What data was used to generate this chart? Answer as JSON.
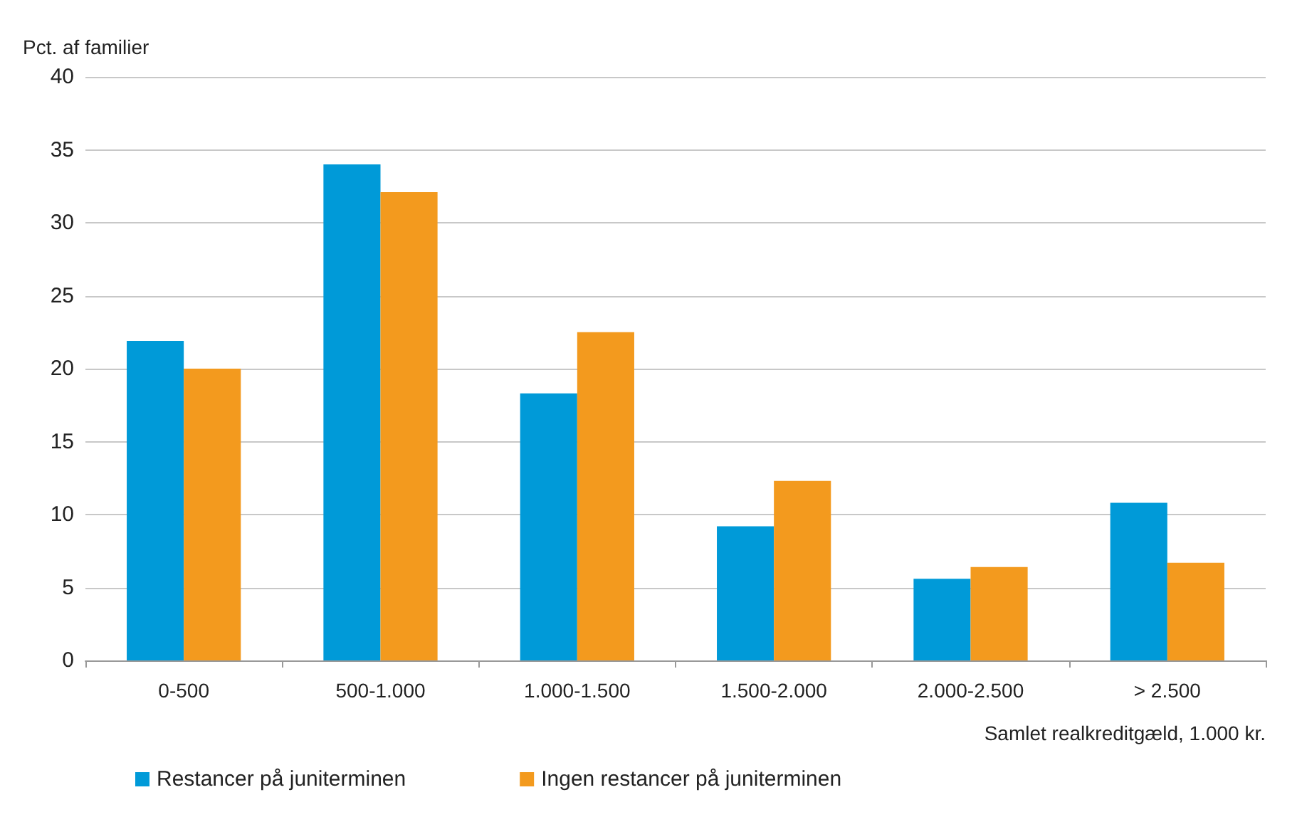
{
  "chart_data": {
    "type": "bar",
    "ylabel": "Pct. af familier",
    "xlabel": "Samlet realkreditgæld, 1.000 kr.",
    "categories": [
      "0-500",
      "500-1.000",
      "1.000-1.500",
      "1.500-2.000",
      "2.000-2.500",
      "> 2.500"
    ],
    "series": [
      {
        "name": "Restancer på juniterminen",
        "color": "#009ad8",
        "values": [
          21.9,
          34.0,
          18.3,
          9.2,
          5.6,
          10.8
        ]
      },
      {
        "name": "Ingen restancer på juniterminen",
        "color": "#f39a1e",
        "values": [
          20.0,
          32.1,
          22.5,
          12.3,
          6.4,
          6.7
        ]
      }
    ],
    "ylim": [
      0,
      40
    ],
    "yticks": [
      0,
      5,
      10,
      15,
      20,
      25,
      30,
      35,
      40
    ],
    "grid": "y",
    "legend": "bottom left"
  }
}
